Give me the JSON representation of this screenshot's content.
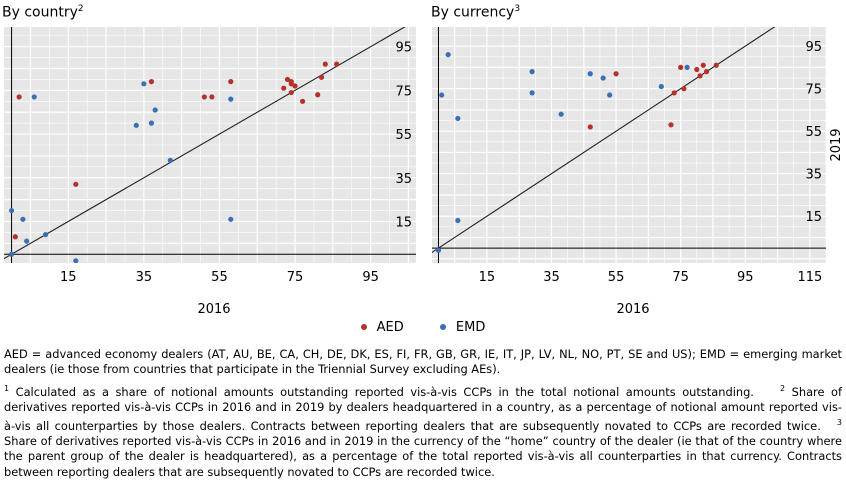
{
  "colors": {
    "AED": "#b5312a",
    "EMD": "#3a6fb4",
    "panel_bg": "#e6e6e6",
    "grid": "#ffffff",
    "line": "#222222"
  },
  "panels": [
    {
      "title": "By country",
      "title_sup": "2"
    },
    {
      "title": "By currency",
      "title_sup": "3"
    }
  ],
  "y_axis_label": "2019",
  "legend": [
    {
      "key": "AED",
      "label": "AED"
    },
    {
      "key": "EMD",
      "label": "EMD"
    }
  ],
  "notes": {
    "definitions": "AED = advanced economy dealers (AT, AU, BE, CA, CH, DE, DK, ES, FI, FR, GB, GR, IE, IT, JP, LV, NL, NO, PT, SE and US); EMD = emerging market dealers (ie those from countries that participate in the Triennial Survey excluding AEs).",
    "footnote1": " Calculated as a share of notional amounts outstanding reported vis-à-vis CCPs in the total notional amounts outstanding.",
    "footnote2": " Share of derivatives reported vis-à-vis CCPs in 2016 and in 2019 by dealers headquartered in a country, as a percentage of notional amount reported vis-à-vis all counterparties by those dealers. Contracts between reporting dealers that are subsequently novated to CCPs are recorded twice.",
    "footnote3": " Share of derivatives reported vis-à-vis CCPs in 2016 and in 2019 in the currency of the “home” country of the dealer (ie that of the country where the parent group of the dealer is headquartered), as a percentage of the total reported vis-à-vis all counterparties in that currency. Contracts between reporting dealers that are subsequently novated to CCPs are recorded twice.",
    "sup1": "1",
    "sup2": "2",
    "sup3": "3"
  },
  "chart_data": [
    {
      "type": "scatter",
      "title": "By country",
      "xlabel": "2016",
      "ylabel": "2019",
      "xlim": [
        -2,
        107
      ],
      "ylim": [
        -4,
        104
      ],
      "x_ticks": [
        15,
        35,
        55,
        75,
        95
      ],
      "y_ticks": [
        15,
        35,
        55,
        75,
        95
      ],
      "reference_line": "45-degree",
      "grid": true,
      "series": [
        {
          "name": "AED",
          "points": [
            [
              2,
              72
            ],
            [
              1,
              8
            ],
            [
              17,
              32
            ],
            [
              37,
              79
            ],
            [
              51,
              72
            ],
            [
              53,
              72
            ],
            [
              58,
              79
            ],
            [
              72,
              76
            ],
            [
              73,
              80
            ],
            [
              74,
              79
            ],
            [
              74,
              78
            ],
            [
              75,
              77
            ],
            [
              74,
              74
            ],
            [
              77,
              70
            ],
            [
              81,
              73
            ],
            [
              82,
              81
            ],
            [
              83,
              87
            ],
            [
              86,
              87
            ]
          ]
        },
        {
          "name": "EMD",
          "points": [
            [
              0,
              0
            ],
            [
              0,
              20
            ],
            [
              3,
              16
            ],
            [
              4,
              6
            ],
            [
              6,
              72
            ],
            [
              9,
              9
            ],
            [
              17,
              -3
            ],
            [
              33,
              59
            ],
            [
              35,
              78
            ],
            [
              37,
              60
            ],
            [
              38,
              66
            ],
            [
              42,
              43
            ],
            [
              58,
              71
            ],
            [
              58,
              16
            ]
          ]
        }
      ]
    },
    {
      "type": "scatter",
      "title": "By currency",
      "xlabel": "2016",
      "ylabel": "2019",
      "xlim": [
        -2,
        120
      ],
      "ylim": [
        -7,
        104
      ],
      "x_ticks": [
        15,
        35,
        55,
        75,
        95,
        115
      ],
      "y_ticks": [
        15,
        35,
        55,
        75,
        95
      ],
      "reference_line": "45-degree",
      "grid": true,
      "series": [
        {
          "name": "AED",
          "points": [
            [
              47,
              57
            ],
            [
              55,
              82
            ],
            [
              72,
              58
            ],
            [
              73,
              73
            ],
            [
              75,
              85
            ],
            [
              76,
              75
            ],
            [
              80,
              84
            ],
            [
              81,
              81
            ],
            [
              82,
              86
            ],
            [
              83,
              83
            ],
            [
              86,
              86
            ]
          ]
        },
        {
          "name": "EMD",
          "points": [
            [
              0,
              -1
            ],
            [
              1,
              72
            ],
            [
              3,
              91
            ],
            [
              6,
              61
            ],
            [
              6,
              13
            ],
            [
              29,
              83
            ],
            [
              29,
              73
            ],
            [
              38,
              63
            ],
            [
              47,
              82
            ],
            [
              51,
              80
            ],
            [
              53,
              72
            ],
            [
              69,
              76
            ],
            [
              77,
              85
            ]
          ]
        }
      ]
    }
  ]
}
